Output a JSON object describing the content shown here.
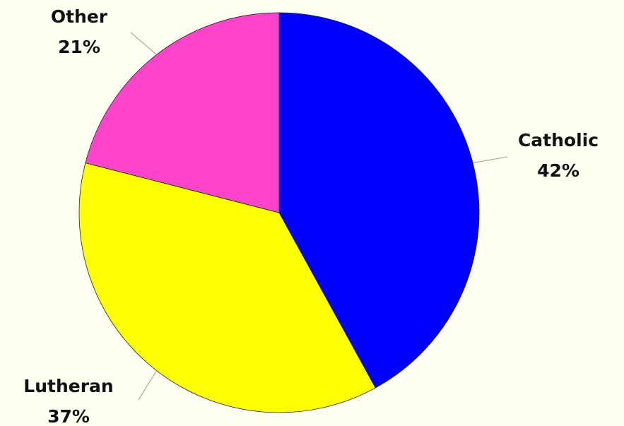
{
  "chart_data": {
    "type": "pie",
    "categories": [
      "Catholic",
      "Lutheran",
      "Other"
    ],
    "values": [
      42,
      37,
      21
    ],
    "value_labels": [
      "42%",
      "37%",
      "21%"
    ],
    "colors": [
      "#0000ff",
      "#ffff00",
      "#ff44cc"
    ]
  }
}
